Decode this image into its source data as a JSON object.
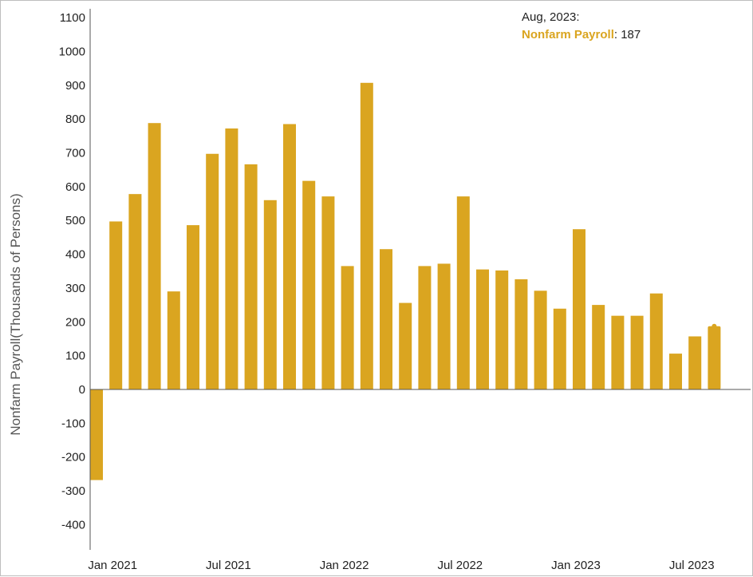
{
  "chart_data": {
    "type": "bar",
    "ylabel": "Nonfarm Payroll(Thousands of Persons)",
    "ylim": [
      -450,
      1100
    ],
    "yticks": [
      1100,
      1000,
      900,
      800,
      700,
      600,
      500,
      400,
      300,
      200,
      100,
      0,
      -100,
      -200,
      -300,
      -400
    ],
    "xtick_labels": [
      "Jan 2021",
      "Jul 2021",
      "Jan 2022",
      "Jul 2022",
      "Jan 2023",
      "Jul 2023"
    ],
    "xtick_months": [
      "2021-01",
      "2021-07",
      "2022-01",
      "2022-07",
      "2023-01",
      "2023-07"
    ],
    "bar_color": "#DAA520",
    "categories": [
      "2020-12",
      "2021-01",
      "2021-02",
      "2021-03",
      "2021-04",
      "2021-05",
      "2021-06",
      "2021-07",
      "2021-08",
      "2021-09",
      "2021-10",
      "2021-11",
      "2021-12",
      "2022-01",
      "2022-02",
      "2022-03",
      "2022-04",
      "2022-05",
      "2022-06",
      "2022-07",
      "2022-08",
      "2022-09",
      "2022-10",
      "2022-11",
      "2022-12",
      "2023-01",
      "2023-02",
      "2023-03",
      "2023-04",
      "2023-05",
      "2023-06",
      "2023-07",
      "2023-08"
    ],
    "series": [
      {
        "name": "Nonfarm Payroll",
        "values": [
          -268,
          497,
          578,
          788,
          290,
          486,
          697,
          772,
          666,
          560,
          785,
          617,
          571,
          365,
          907,
          415,
          256,
          365,
          372,
          571,
          355,
          352,
          326,
          292,
          239,
          474,
          250,
          218,
          218,
          284,
          106,
          157,
          187
        ]
      }
    ],
    "tooltip": {
      "date_label": "Aug, 2023:",
      "series_name": "Nonfarm Payroll",
      "separator": ": ",
      "value": "187"
    }
  }
}
